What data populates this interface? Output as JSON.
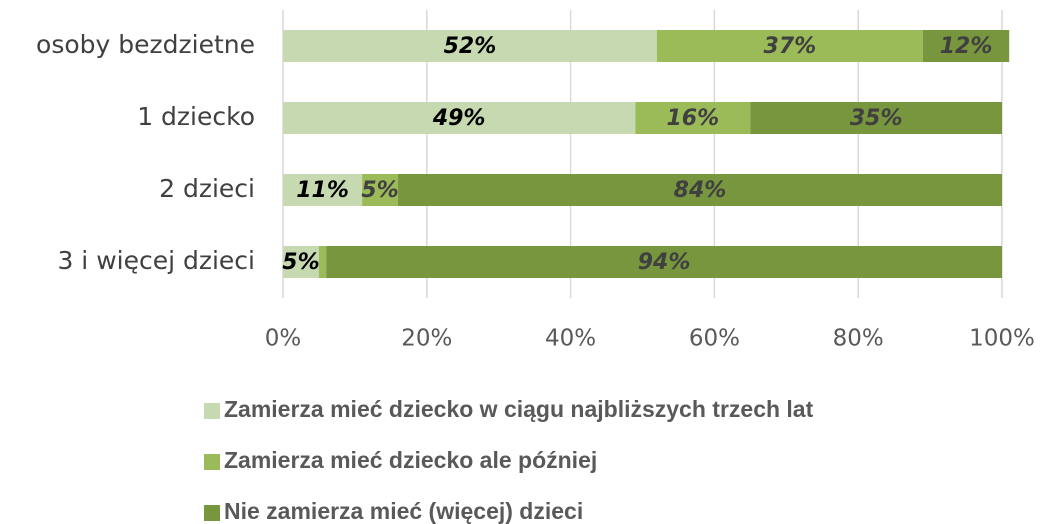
{
  "chart_data": {
    "type": "stacked-bar-horizontal",
    "categories": [
      "osoby bezdzietne",
      "1 dziecko",
      "2 dzieci",
      "3 i więcej dzieci"
    ],
    "series": [
      {
        "name": "Zamierza mieć dziecko w ciągu najbliższych trzech lat",
        "color": "#c6d9b1",
        "label_color": "#000000",
        "values": [
          52,
          49,
          11,
          5
        ],
        "value_labels": [
          "52%",
          "49%",
          "11%",
          "5%"
        ]
      },
      {
        "name": "Zamierza mieć dziecko ale później",
        "color": "#9bbb59",
        "label_color": "#404040",
        "values": [
          37,
          16,
          5,
          1
        ],
        "value_labels": [
          "37%",
          "16%",
          "5%",
          null
        ]
      },
      {
        "name": "Nie zamierza mieć (więcej) dzieci",
        "color": "#77963e",
        "label_color": "#404040",
        "values": [
          12,
          35,
          84,
          94
        ],
        "value_labels": [
          "12%",
          "35%",
          "84%",
          "94%"
        ]
      }
    ],
    "xlim": [
      0,
      100
    ],
    "xticks": [
      {
        "value": 0,
        "label": "0%"
      },
      {
        "value": 20,
        "label": "20%"
      },
      {
        "value": 40,
        "label": "40%"
      },
      {
        "value": 60,
        "label": "60%"
      },
      {
        "value": 80,
        "label": "80%"
      },
      {
        "value": 100,
        "label": "100%"
      }
    ],
    "grid": true,
    "legend": "bottom"
  }
}
